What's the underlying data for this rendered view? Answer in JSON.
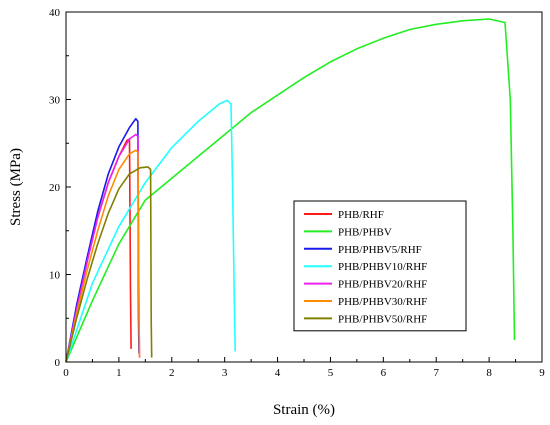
{
  "chart_data": {
    "type": "line",
    "xlabel": "Strain (%)",
    "ylabel": "Stress (MPa)",
    "xlim": [
      0,
      9
    ],
    "ylim": [
      0,
      40
    ],
    "xticks": [
      0,
      1,
      2,
      3,
      4,
      5,
      6,
      7,
      8,
      9
    ],
    "yticks": [
      0,
      10,
      20,
      30,
      40
    ],
    "grid": false,
    "legend_position": "center-right",
    "series": [
      {
        "name": "PHB/RHF",
        "color": "#ff1a1a",
        "points": [
          [
            0,
            0
          ],
          [
            0.2,
            6
          ],
          [
            0.4,
            11.5
          ],
          [
            0.6,
            16.5
          ],
          [
            0.8,
            20.5
          ],
          [
            1.0,
            23.5
          ],
          [
            1.15,
            25.3
          ],
          [
            1.2,
            25.5
          ],
          [
            1.22,
            8
          ],
          [
            1.23,
            1.5
          ]
        ]
      },
      {
        "name": "PHB/PHBV",
        "color": "#22ee22",
        "points": [
          [
            0,
            0
          ],
          [
            0.5,
            7
          ],
          [
            1.0,
            13.5
          ],
          [
            1.5,
            18.5
          ],
          [
            2.0,
            21
          ],
          [
            2.5,
            23.5
          ],
          [
            3.0,
            26
          ],
          [
            3.5,
            28.5
          ],
          [
            4.0,
            30.5
          ],
          [
            4.5,
            32.5
          ],
          [
            5.0,
            34.3
          ],
          [
            5.5,
            35.8
          ],
          [
            6.0,
            37
          ],
          [
            6.5,
            38
          ],
          [
            7.0,
            38.6
          ],
          [
            7.5,
            39
          ],
          [
            8.0,
            39.2
          ],
          [
            8.3,
            38.8
          ],
          [
            8.4,
            30
          ],
          [
            8.45,
            15
          ],
          [
            8.48,
            2.5
          ]
        ]
      },
      {
        "name": "PHB/PHBV5/RHF",
        "color": "#1a1aee",
        "points": [
          [
            0,
            0
          ],
          [
            0.2,
            6.5
          ],
          [
            0.4,
            12
          ],
          [
            0.6,
            17.2
          ],
          [
            0.8,
            21.5
          ],
          [
            1.0,
            24.6
          ],
          [
            1.2,
            26.8
          ],
          [
            1.32,
            27.8
          ],
          [
            1.36,
            27.5
          ],
          [
            1.37,
            5
          ],
          [
            1.38,
            1
          ]
        ]
      },
      {
        "name": "PHB/PHBV10/RHF",
        "color": "#22ffff",
        "points": [
          [
            0,
            0
          ],
          [
            0.5,
            9
          ],
          [
            1.0,
            15.5
          ],
          [
            1.5,
            20.5
          ],
          [
            2.0,
            24.5
          ],
          [
            2.5,
            27.5
          ],
          [
            2.9,
            29.5
          ],
          [
            3.05,
            29.9
          ],
          [
            3.12,
            29.5
          ],
          [
            3.15,
            20
          ],
          [
            3.18,
            8
          ],
          [
            3.2,
            1.2
          ]
        ]
      },
      {
        "name": "PHB/PHBV20/RHF",
        "color": "#ee22ee",
        "points": [
          [
            0,
            0
          ],
          [
            0.2,
            6
          ],
          [
            0.4,
            11.5
          ],
          [
            0.6,
            16.5
          ],
          [
            0.8,
            20.5
          ],
          [
            1.0,
            23.5
          ],
          [
            1.2,
            25.5
          ],
          [
            1.32,
            26
          ],
          [
            1.36,
            25.8
          ],
          [
            1.38,
            5
          ],
          [
            1.39,
            0.5
          ]
        ]
      },
      {
        "name": "PHB/PHBV30/RHF",
        "color": "#ff8c00",
        "points": [
          [
            0,
            0
          ],
          [
            0.2,
            5.5
          ],
          [
            0.4,
            10.5
          ],
          [
            0.6,
            15
          ],
          [
            0.8,
            19
          ],
          [
            1.0,
            22
          ],
          [
            1.2,
            23.8
          ],
          [
            1.32,
            24.2
          ],
          [
            1.36,
            24
          ],
          [
            1.38,
            5
          ],
          [
            1.39,
            0.5
          ]
        ]
      },
      {
        "name": "PHB/PHBV50/RHF",
        "color": "#808000",
        "points": [
          [
            0,
            0
          ],
          [
            0.2,
            5
          ],
          [
            0.4,
            9.5
          ],
          [
            0.6,
            13.5
          ],
          [
            0.8,
            17
          ],
          [
            1.0,
            19.8
          ],
          [
            1.2,
            21.5
          ],
          [
            1.4,
            22.2
          ],
          [
            1.55,
            22.3
          ],
          [
            1.6,
            22
          ],
          [
            1.61,
            5
          ],
          [
            1.62,
            0.5
          ]
        ]
      }
    ]
  }
}
